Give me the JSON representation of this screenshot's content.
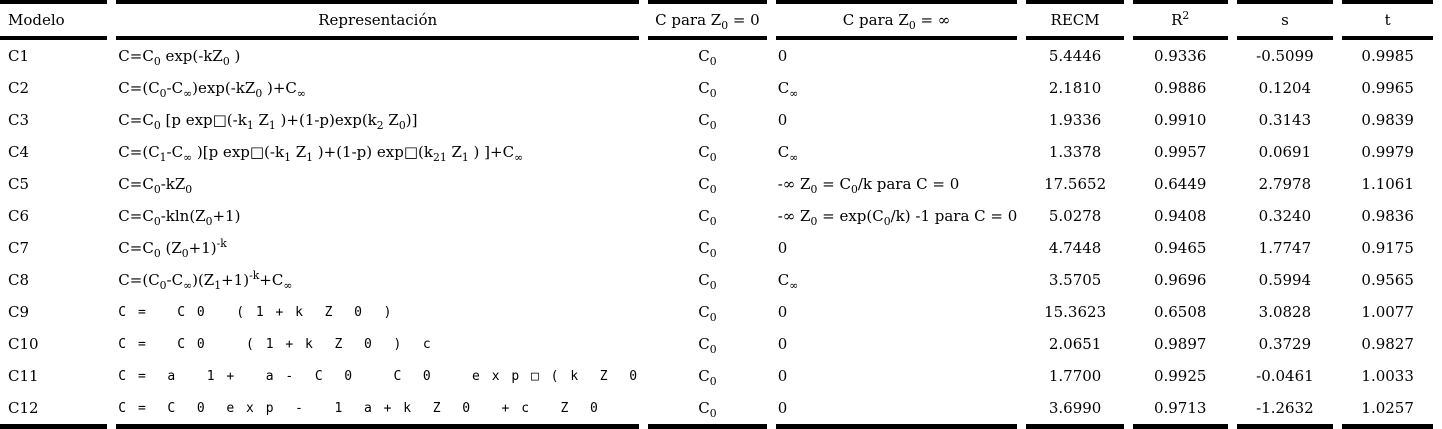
{
  "page": {
    "background_color": "#ffffff",
    "text_color": "#000000",
    "rule_color": "#000000",
    "language": "es"
  },
  "table": {
    "headers": [
      "Modelo",
      "Representación",
      "C para Z_{0} = 0",
      "C para Z_{0} = ∞",
      "RECM",
      "R^{2}",
      "s",
      "t"
    ],
    "rows": [
      {
        "model": "C1",
        "representation": "C=C_{0} exp(-kZ_{0} )",
        "mono": false,
        "c_z0_0": "C_{0}",
        "c_z0_inf": "0",
        "recm": "5.4446",
        "r2": "0.9336",
        "s": "-0.5099",
        "t": "0.9985"
      },
      {
        "model": "C2",
        "representation": "C=(C_{0}-C_{∞})exp(-kZ_{0} )+C_{∞}",
        "mono": false,
        "c_z0_0": "C_{0}",
        "c_z0_inf": "C_{∞}",
        "recm": "2.1810",
        "r2": "0.9886",
        "s": "0.1204",
        "t": "0.9965"
      },
      {
        "model": "C3",
        "representation": "C=C_{0} [p exp□(-k_{1} Z_{1} )+(1-p)exp(k_{2} Z_{0})]",
        "mono": false,
        "c_z0_0": "C_{0}",
        "c_z0_inf": "0",
        "recm": "1.9336",
        "r2": "0.9910",
        "s": "0.3143",
        "t": "0.9839"
      },
      {
        "model": "C4",
        "representation": "C=(C_{1}-C_{∞} )[p exp□(-k_{1} Z_{1} )+(1-p) exp□(k_{21} Z_{1} ) ]+C_{∞}",
        "mono": false,
        "c_z0_0": "C_{0}",
        "c_z0_inf": "C_{∞}",
        "recm": "1.3378",
        "r2": "0.9957",
        "s": "0.0691",
        "t": "0.9979"
      },
      {
        "model": "C5",
        "representation": "C=C_{0}-kZ_{0}",
        "mono": false,
        "c_z0_0": "C_{0}",
        "c_z0_inf": "-∞ Z_{0} = C_{0}/k para C = 0",
        "recm": "17.5652",
        "r2": "0.6449",
        "s": "2.7978",
        "t": "1.1061"
      },
      {
        "model": "C6",
        "representation": "C=C_{0}-kln(Z_{0}+1)",
        "mono": false,
        "c_z0_0": "C_{0}",
        "c_z0_inf": "-∞ Z_{0} = exp(C_{0}/k) -1 para C = 0",
        "recm": "5.0278",
        "r2": "0.9408",
        "s": "0.3240",
        "t": "0.9836"
      },
      {
        "model": "C7",
        "representation": "C=C_{0} (Z_{0}+1)^{-k}",
        "mono": false,
        "c_z0_0": "C_{0}",
        "c_z0_inf": "0",
        "recm": "4.7448",
        "r2": "0.9465",
        "s": "1.7747",
        "t": "0.9175"
      },
      {
        "model": "C8",
        "representation": "C=(C_{0}-C_{∞})(Z_{1}+1)^{-k}+C_{∞}",
        "mono": false,
        "c_z0_0": "C_{0}",
        "c_z0_inf": "C_{∞}",
        "recm": "3.5705",
        "r2": "0.9696",
        "s": "0.5994",
        "t": "0.9565"
      },
      {
        "model": "C9",
        "representation": "C =   C 0   ( 1 + k  Z  0  )",
        "mono": true,
        "c_z0_0": "C_{0}",
        "c_z0_inf": "0",
        "recm": "15.3623",
        "r2": "0.6508",
        "s": "3.0828",
        "t": "1.0077"
      },
      {
        "model": "C10",
        "representation": "C =   C 0    ( 1 + k  Z  0  )  c",
        "mono": true,
        "c_z0_0": "C_{0}",
        "c_z0_inf": "0",
        "recm": "2.0651",
        "r2": "0.9897",
        "s": "0.3729",
        "t": "0.9827"
      },
      {
        "model": "C11",
        "representation": "C =  a   1 +   a -  C  0    C  0    e x p □ ( k  Z  0",
        "mono": true,
        "c_z0_0": "C_{0}",
        "c_z0_inf": "0",
        "recm": "1.7700",
        "r2": "0.9925",
        "s": "-0.0461",
        "t": "1.0033"
      },
      {
        "model": "C12",
        "representation": "C =  C  0  e x p  -   1  a + k  Z  0   + c   Z  0",
        "mono": true,
        "c_z0_0": "C_{0}",
        "c_z0_inf": "0",
        "recm": "3.6990",
        "r2": "0.9713",
        "s": "-1.2632",
        "t": "1.0257"
      }
    ]
  }
}
